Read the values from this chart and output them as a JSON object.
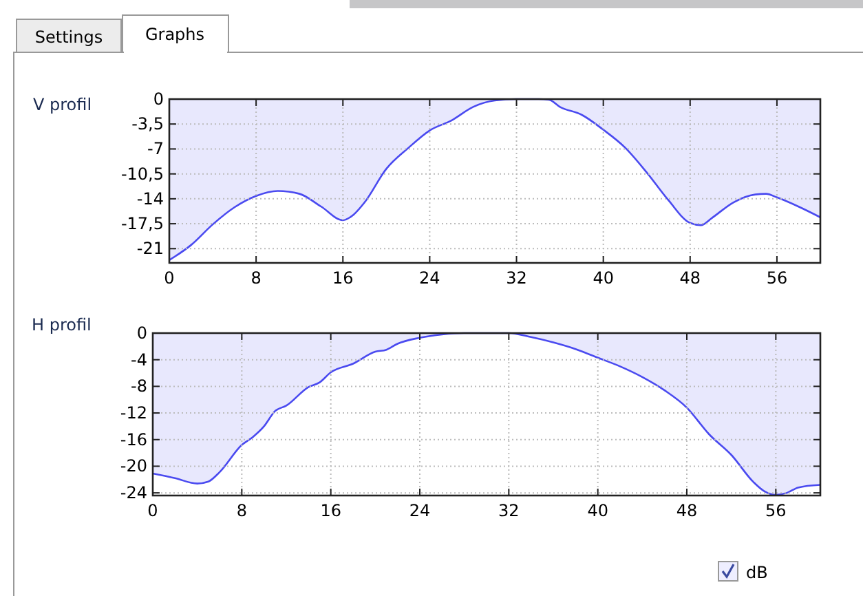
{
  "chart_data": [
    {
      "type": "area",
      "title": "V profil",
      "annotations": [
        "Settings",
        "Graphs"
      ],
      "grid": true,
      "marker": "none",
      "xlim": [
        0,
        60
      ],
      "ylim": [
        -23,
        0
      ],
      "xticks": [
        0,
        8,
        16,
        24,
        32,
        40,
        48,
        56
      ],
      "yticks": [
        0,
        {
          "value": -3.5,
          "label": "-3,5"
        },
        -7,
        {
          "value": -10.5,
          "label": "-10,5"
        },
        -14,
        {
          "value": -17.5,
          "label": "-17,5"
        },
        -21
      ],
      "series": [
        {
          "color": "#4a4af0",
          "x": [
            0,
            2,
            4,
            6,
            8,
            10,
            12,
            14,
            16,
            17,
            18,
            20,
            22,
            24,
            26,
            28,
            30,
            32,
            34,
            35,
            36,
            38,
            40,
            42,
            44,
            46,
            48,
            49,
            50,
            52,
            54,
            55,
            56,
            58,
            60
          ],
          "values": [
            -22.6,
            -20.5,
            -17.6,
            -15.2,
            -13.6,
            -12.9,
            -13.3,
            -15.1,
            -17.0,
            -16.2,
            -14.5,
            -9.8,
            -6.9,
            -4.4,
            -3.0,
            -1.1,
            -0.2,
            0,
            0,
            -0.1,
            -1.1,
            -2.2,
            -4.3,
            -6.8,
            -10.3,
            -14.2,
            -17.4,
            -17.7,
            -16.7,
            -14.5,
            -13.4,
            -13.3,
            -13.8,
            -15.1,
            -16.6
          ]
        }
      ]
    },
    {
      "type": "area",
      "title": "H profil",
      "annotations": [
        "dB"
      ],
      "grid": true,
      "marker": "none",
      "xlim": [
        0,
        60
      ],
      "ylim": [
        -24.4,
        0
      ],
      "xticks": [
        0,
        8,
        16,
        24,
        32,
        40,
        48,
        56
      ],
      "yticks": [
        0,
        -4,
        -8,
        -12,
        -16,
        -20,
        -24
      ],
      "series": [
        {
          "color": "#4a4af0",
          "x": [
            0,
            2,
            4,
            5,
            6,
            8,
            9,
            10,
            11,
            12,
            14,
            15,
            16,
            18,
            20,
            21,
            22,
            24,
            26,
            28,
            30,
            32,
            34,
            36,
            38,
            40,
            42,
            44,
            46,
            48,
            50,
            52,
            54,
            55,
            56,
            57,
            58,
            60
          ],
          "values": [
            -21.1,
            -21.8,
            -22.6,
            -22.3,
            -20.9,
            -16.8,
            -15.6,
            -14.0,
            -11.7,
            -10.9,
            -8.1,
            -7.4,
            -5.9,
            -4.6,
            -2.8,
            -2.5,
            -1.6,
            -0.7,
            -0.2,
            0,
            0,
            0,
            -0.6,
            -1.4,
            -2.4,
            -3.7,
            -5.0,
            -6.6,
            -8.6,
            -11.2,
            -15.2,
            -18.3,
            -22.4,
            -23.8,
            -24.3,
            -24.0,
            -23.2,
            -22.8
          ]
        }
      ]
    }
  ]
}
